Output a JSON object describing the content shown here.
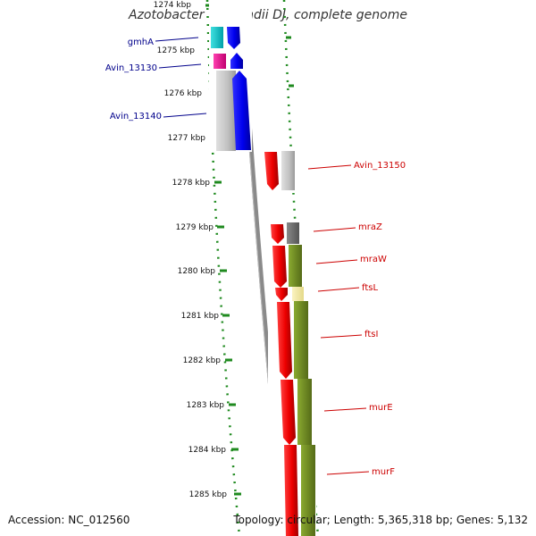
{
  "title": "Azotobacter vinelandii DJ, complete genome",
  "footer": {
    "accession": "Accession: NC_012560",
    "topology": "Topology: circular; Length: 5,365,318 bp; Genes: 5,132"
  },
  "colors": {
    "blue_strand": "#0000ee",
    "red_strand": "#ee0000",
    "cyan_feature": "#00c8cc",
    "magenta_feature": "#e8008c",
    "grey_feature": "#c0c0c0",
    "olive_feature": "#6b8e23",
    "pale_yellow_feature": "#f4e9a0",
    "dark_grey_feature": "#666666",
    "backbone": "#808080",
    "tick": "#228b22"
  },
  "scale": {
    "unit": "kbp",
    "ticks": [
      "1274 kbp",
      "1275 kbp",
      "1276 kbp",
      "1277 kbp",
      "1278 kbp",
      "1279 kbp",
      "1280 kbp",
      "1281 kbp",
      "1282 kbp",
      "1283 kbp",
      "1284 kbp",
      "1285 kbp"
    ]
  },
  "gene_labels": [
    {
      "text": "gmhA",
      "strand": "forward"
    },
    {
      "text": "Avin_13130",
      "strand": "forward"
    },
    {
      "text": "Avin_13140",
      "strand": "forward"
    },
    {
      "text": "Avin_13150",
      "strand": "reverse"
    },
    {
      "text": "mraZ",
      "strand": "reverse"
    },
    {
      "text": "mraW",
      "strand": "reverse"
    },
    {
      "text": "ftsL",
      "strand": "reverse"
    },
    {
      "text": "ftsI",
      "strand": "reverse"
    },
    {
      "text": "murE",
      "strand": "reverse"
    },
    {
      "text": "murF",
      "strand": "reverse"
    }
  ]
}
